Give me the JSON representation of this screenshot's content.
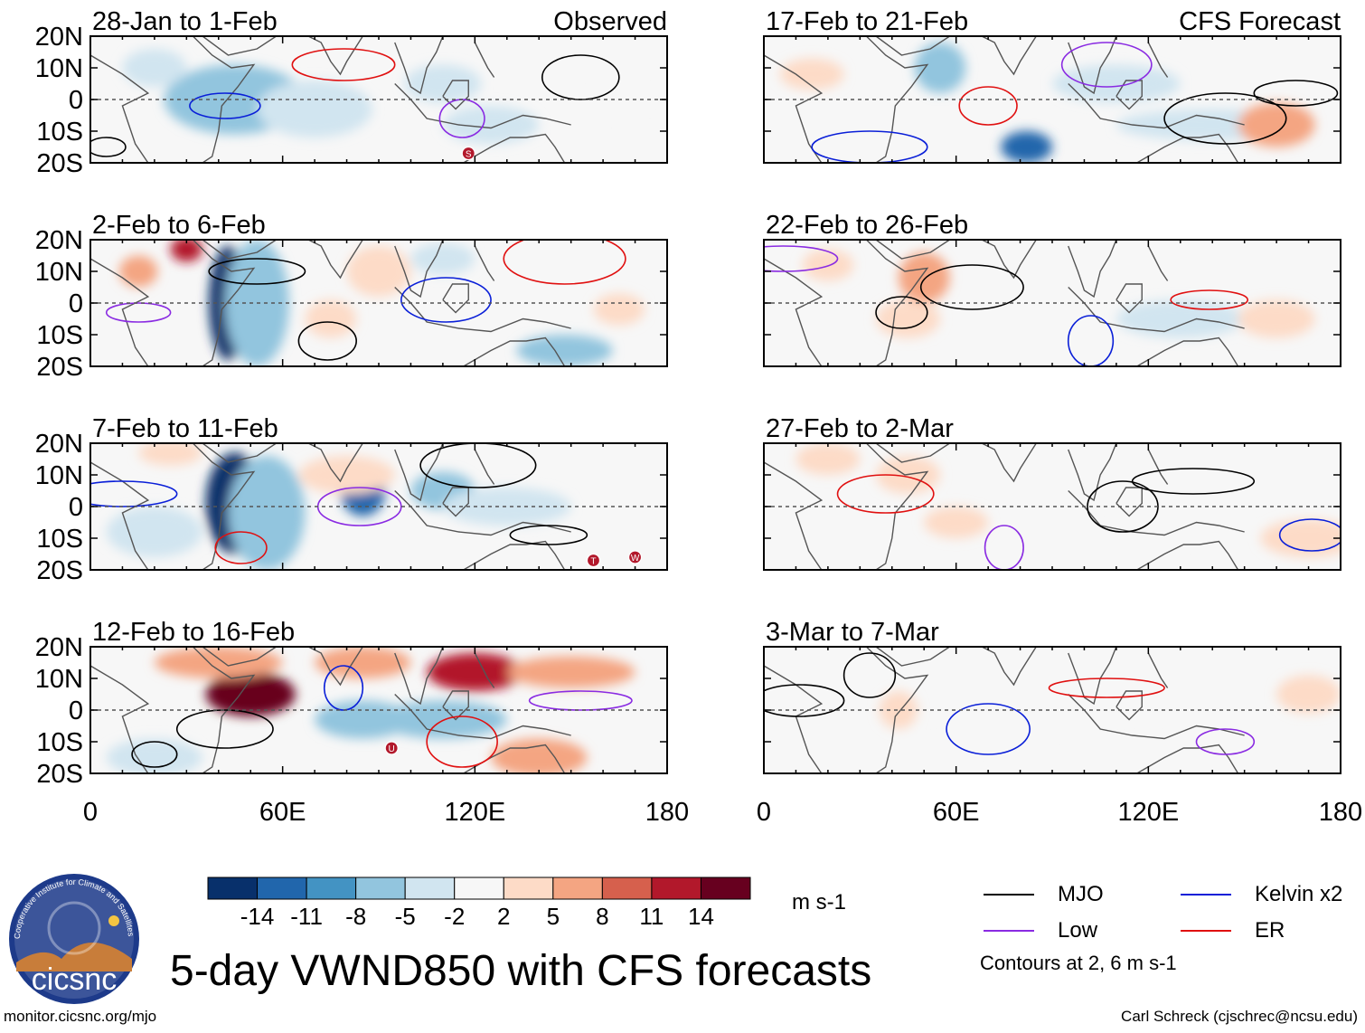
{
  "title": "5-day VWND850 with CFS forecasts",
  "footer": {
    "url": "monitor.cicsnc.org/mjo",
    "credit": "Carl Schreck (cjschrec@ncsu.edu)"
  },
  "logo": {
    "text": "cicsnc",
    "ring_text": "Cooperative Institute for Climate and Satellites"
  },
  "colorbar": {
    "units": "m s-1",
    "tick_labels": [
      "-14",
      "-11",
      "-8",
      "-5",
      "-2",
      "2",
      "5",
      "8",
      "11",
      "14"
    ],
    "colors": [
      "#08306b",
      "#2166ac",
      "#4393c3",
      "#92c5de",
      "#d1e5f0",
      "#f7f7f7",
      "#fddbc7",
      "#f4a582",
      "#d6604d",
      "#b2182b",
      "#67001f"
    ]
  },
  "legend": {
    "items": [
      {
        "label": "MJO",
        "color": "#000000"
      },
      {
        "label": "Kelvin x2",
        "color": "#0a1fd8"
      },
      {
        "label": "Low",
        "color": "#8a2be2"
      },
      {
        "label": "ER",
        "color": "#e01010"
      }
    ],
    "contour_note": "Contours at 2, 6 m s-1"
  },
  "chart_data": {
    "type": "heatmap",
    "variable": "VWND850",
    "units": "m s-1",
    "x_ticks": [
      "0",
      "60E",
      "120E",
      "180"
    ],
    "y_ticks": [
      "20N",
      "10N",
      "0",
      "10S",
      "20S"
    ],
    "xlim": [
      0,
      180
    ],
    "ylim": [
      -20,
      20
    ],
    "columns": [
      {
        "header": "Observed",
        "panels": [
          {
            "label": "28-Jan to 1-Feb",
            "blobs": [
              [
                45,
                0,
                22,
                11,
                -6
              ],
              [
                70,
                -3,
                18,
                9,
                -5
              ],
              [
                125,
                -8,
                15,
                6,
                -4
              ],
              [
                20,
                10,
                10,
                6,
                -4
              ],
              [
                110,
                5,
                12,
                6,
                -3
              ],
              [
                165,
                0,
                8,
                5,
                -2
              ]
            ],
            "markers": [
              {
                "lon": 118,
                "lat": -17,
                "text": "S"
              }
            ]
          },
          {
            "label": "2-Feb to 6-Feb",
            "blobs": [
              [
                43,
                0,
                6,
                18,
                -16
              ],
              [
                52,
                0,
                10,
                20,
                -8
              ],
              [
                30,
                17,
                5,
                4,
                13
              ],
              [
                15,
                10,
                6,
                5,
                5
              ],
              [
                90,
                10,
                10,
                8,
                4
              ],
              [
                75,
                -5,
                8,
                6,
                4
              ],
              [
                110,
                14,
                10,
                5,
                -5
              ],
              [
                148,
                -15,
                15,
                5,
                -6
              ],
              [
                165,
                -2,
                8,
                5,
                3
              ]
            ],
            "markers": []
          },
          {
            "label": "7-Feb to 11-Feb",
            "blobs": [
              [
                45,
                1,
                9,
                16,
                -16
              ],
              [
                55,
                -2,
                12,
                18,
                -8
              ],
              [
                85,
                5,
                7,
                8,
                -12
              ],
              [
                110,
                5,
                10,
                6,
                -6
              ],
              [
                130,
                0,
                20,
                6,
                -4
              ],
              [
                80,
                10,
                15,
                6,
                3
              ],
              [
                25,
                17,
                10,
                4,
                3
              ],
              [
                20,
                -8,
                15,
                8,
                -4
              ]
            ],
            "markers": [
              {
                "lon": 157,
                "lat": -17,
                "text": "T"
              },
              {
                "lon": 170,
                "lat": -16,
                "text": "W"
              }
            ]
          },
          {
            "label": "12-Feb to 16-Feb",
            "blobs": [
              [
                50,
                5,
                14,
                7,
                16
              ],
              [
                40,
                15,
                20,
                5,
                7
              ],
              [
                120,
                12,
                15,
                6,
                12
              ],
              [
                85,
                15,
                15,
                5,
                5
              ],
              [
                150,
                12,
                20,
                5,
                6
              ],
              [
                85,
                -3,
                15,
                6,
                -8
              ],
              [
                110,
                -3,
                20,
                6,
                -6
              ],
              [
                140,
                -15,
                15,
                6,
                6
              ],
              [
                20,
                -15,
                15,
                6,
                -5
              ]
            ],
            "markers": [
              {
                "lon": 94,
                "lat": -12,
                "text": "U"
              }
            ]
          }
        ]
      },
      {
        "header": "CFS Forecast",
        "panels": [
          {
            "label": "17-Feb to 21-Feb",
            "blobs": [
              [
                55,
                10,
                8,
                8,
                -6
              ],
              [
                82,
                -15,
                8,
                5,
                -12
              ],
              [
                140,
                -8,
                30,
                5,
                -4
              ],
              [
                110,
                5,
                20,
                6,
                -3
              ],
              [
                160,
                -8,
                12,
                7,
                7
              ],
              [
                15,
                8,
                10,
                5,
                2
              ]
            ],
            "markers": []
          },
          {
            "label": "22-Feb to 26-Feb",
            "blobs": [
              [
                50,
                8,
                8,
                8,
                5
              ],
              [
                45,
                -5,
                10,
                6,
                3
              ],
              [
                130,
                -5,
                20,
                6,
                -3
              ],
              [
                160,
                -5,
                12,
                6,
                3
              ],
              [
                20,
                12,
                8,
                5,
                2
              ]
            ],
            "markers": []
          },
          {
            "label": "27-Feb to 2-Mar",
            "blobs": [
              [
                45,
                10,
                10,
                6,
                3
              ],
              [
                60,
                -5,
                10,
                5,
                3
              ],
              [
                170,
                -10,
                15,
                6,
                4
              ],
              [
                130,
                -5,
                20,
                6,
                -2
              ],
              [
                20,
                15,
                10,
                5,
                2
              ]
            ],
            "markers": []
          },
          {
            "label": "3-Mar to 7-Mar",
            "blobs": [
              [
                42,
                0,
                6,
                6,
                3
              ],
              [
                120,
                -15,
                25,
                5,
                -2
              ],
              [
                170,
                5,
                10,
                6,
                2
              ],
              [
                55,
                -15,
                10,
                5,
                -2
              ]
            ],
            "markers": []
          }
        ]
      }
    ],
    "contour_legend": [
      "MJO",
      "Low",
      "Kelvin x2",
      "ER"
    ]
  }
}
